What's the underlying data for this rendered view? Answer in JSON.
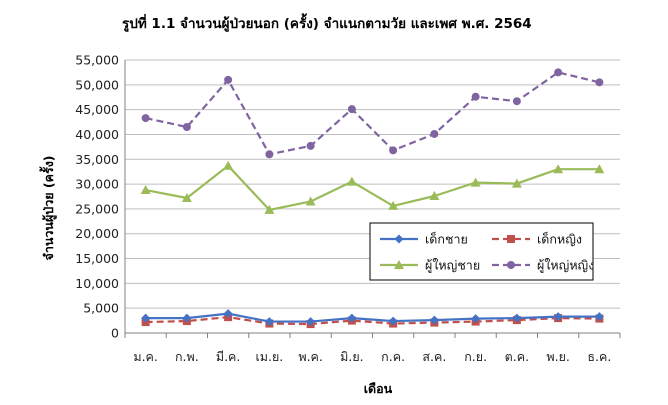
{
  "chart_data": {
    "type": "line",
    "title": "รูปที่ 1.1 จำนวนผู้ป่วยนอก (ครั้ง) จำแนกตามวัย และเพศ พ.ศ. 2564",
    "xlabel": "เดือน",
    "ylabel": "จำนวนผู้ป่วย (ครั้ง)",
    "ylim": [
      0,
      55000
    ],
    "ytick_step": 5000,
    "grid": "horizontal",
    "legend_position": "lower-right-inside",
    "categories": [
      "ม.ค.",
      "ก.พ.",
      "มี.ค.",
      "เม.ย.",
      "พ.ค.",
      "มิ.ย.",
      "ก.ค.",
      "ส.ค.",
      "ก.ย.",
      "ต.ค.",
      "พ.ย.",
      "ธ.ค."
    ],
    "series": [
      {
        "name": "เด็กชาย",
        "color": "#4472C4",
        "marker": "diamond",
        "dash": "solid",
        "values": [
          3000,
          3000,
          3900,
          2300,
          2300,
          3000,
          2400,
          2600,
          2900,
          3000,
          3300,
          3300
        ]
      },
      {
        "name": "เด็กหญิง",
        "color": "#C0504D",
        "marker": "square",
        "dash": "dashed",
        "values": [
          2200,
          2400,
          3200,
          1900,
          1800,
          2500,
          1900,
          2100,
          2300,
          2600,
          3000,
          2900
        ]
      },
      {
        "name": "ผู้ใหญ่ชาย",
        "color": "#9BBB59",
        "marker": "triangle",
        "dash": "solid",
        "values": [
          28800,
          27200,
          33700,
          24800,
          26500,
          30500,
          25600,
          27600,
          30300,
          30100,
          33000,
          33000
        ]
      },
      {
        "name": "ผู้ใหญ่หญิง",
        "color": "#8064A2",
        "marker": "circle",
        "dash": "dashed",
        "values": [
          43300,
          41500,
          51000,
          36000,
          37700,
          45100,
          36800,
          40100,
          47600,
          46700,
          52500,
          50500
        ]
      }
    ]
  }
}
